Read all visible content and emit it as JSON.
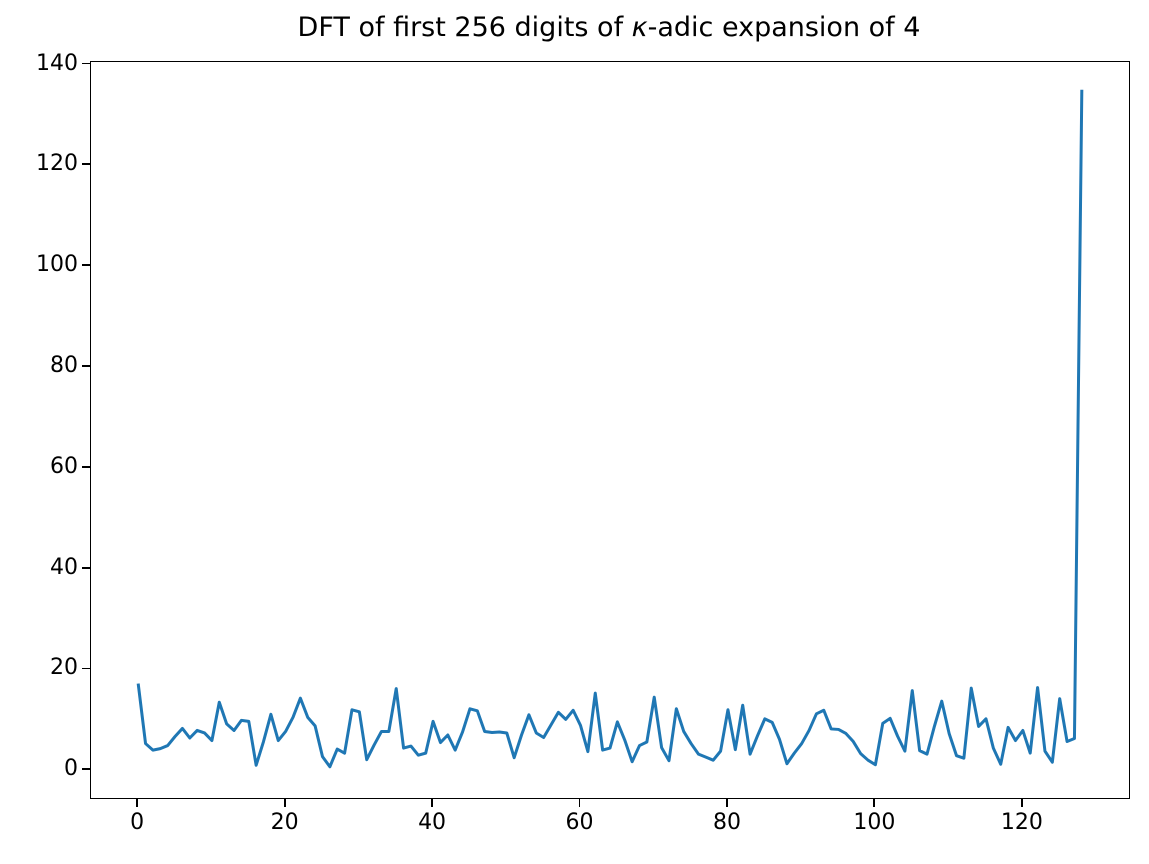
{
  "figure": {
    "title_prefix": "DFT of first 256 digits of ",
    "title_kappa": "κ",
    "title_suffix": "-adic expansion of 4"
  },
  "colors": {
    "line": "#1f77b4",
    "background": "#ffffff",
    "spine": "#000000",
    "text": "#000000"
  },
  "chart_data": {
    "type": "line",
    "title": "DFT of first 256 digits of κ-adic expansion of 4",
    "xlabel": "",
    "ylabel": "",
    "legend": null,
    "grid": false,
    "x_is_index": true,
    "x_range": [
      0,
      128
    ],
    "xlim": [
      -6.4,
      134.4
    ],
    "ylim": [
      -5.5,
      140.5
    ],
    "xticks": [
      0,
      20,
      40,
      60,
      80,
      100,
      120
    ],
    "yticks": [
      0,
      20,
      40,
      60,
      80,
      100,
      120,
      140
    ],
    "values": [
      17.2,
      5.3,
      4.0,
      4.3,
      4.9,
      6.7,
      8.3,
      6.4,
      7.9,
      7.4,
      5.9,
      13.5,
      9.2,
      7.9,
      9.9,
      9.7,
      1.0,
      5.7,
      11.1,
      5.9,
      7.7,
      10.5,
      14.3,
      10.5,
      8.8,
      2.7,
      0.7,
      4.2,
      3.4,
      12.0,
      11.6,
      2.1,
      5.0,
      7.7,
      7.7,
      16.2,
      4.4,
      4.8,
      3.0,
      3.4,
      9.7,
      5.5,
      7.0,
      4.0,
      7.6,
      12.2,
      11.8,
      7.7,
      7.5,
      7.6,
      7.4,
      2.5,
      7.0,
      11.0,
      7.4,
      6.5,
      9.0,
      11.5,
      10.1,
      11.9,
      8.9,
      3.7,
      15.3,
      4.0,
      4.4,
      9.6,
      6.0,
      1.7,
      4.9,
      5.6,
      14.5,
      4.5,
      1.9,
      12.2,
      7.7,
      5.3,
      3.2,
      2.6,
      2.0,
      3.8,
      12.0,
      4.1,
      12.9,
      3.2,
      6.8,
      10.2,
      9.5,
      6.1,
      1.3,
      3.4,
      5.3,
      7.9,
      11.2,
      11.9,
      8.2,
      8.1,
      7.3,
      5.7,
      3.3,
      2.0,
      1.1,
      9.3,
      10.3,
      6.8,
      3.8,
      15.8,
      3.9,
      3.2,
      8.7,
      13.7,
      7.3,
      2.9,
      2.4,
      16.3,
      8.7,
      10.2,
      4.4,
      1.2,
      8.5,
      5.9,
      7.9,
      3.4,
      16.4,
      3.8,
      1.6,
      14.2,
      5.7,
      6.3,
      135.0
    ]
  }
}
